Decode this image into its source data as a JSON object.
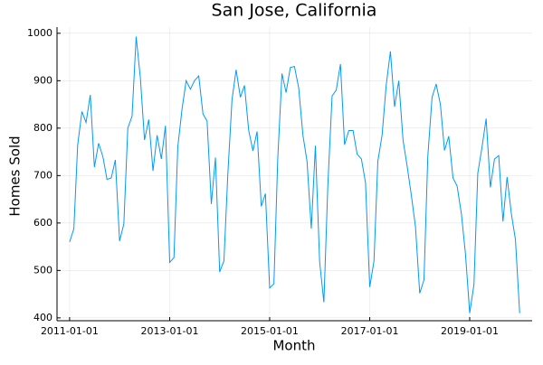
{
  "chart_data": {
    "type": "line",
    "title": "San Jose, California",
    "x_label": "Month",
    "y_label": "Homes Sold",
    "x": [
      "2011-01-01",
      "2011-02-01",
      "2011-03-01",
      "2011-04-01",
      "2011-05-01",
      "2011-06-01",
      "2011-07-01",
      "2011-08-01",
      "2011-09-01",
      "2011-10-01",
      "2011-11-01",
      "2011-12-01",
      "2012-01-01",
      "2012-02-01",
      "2012-03-01",
      "2012-04-01",
      "2012-05-01",
      "2012-06-01",
      "2012-07-01",
      "2012-08-01",
      "2012-09-01",
      "2012-10-01",
      "2012-11-01",
      "2012-12-01",
      "2013-01-01",
      "2013-02-01",
      "2013-03-01",
      "2013-04-01",
      "2013-05-01",
      "2013-06-01",
      "2013-07-01",
      "2013-08-01",
      "2013-09-01",
      "2013-10-01",
      "2013-11-01",
      "2013-12-01",
      "2014-01-01",
      "2014-02-01",
      "2014-03-01",
      "2014-04-01",
      "2014-05-01",
      "2014-06-01",
      "2014-07-01",
      "2014-08-01",
      "2014-09-01",
      "2014-10-01",
      "2014-11-01",
      "2014-12-01",
      "2015-01-01",
      "2015-02-01",
      "2015-03-01",
      "2015-04-01",
      "2015-05-01",
      "2015-06-01",
      "2015-07-01",
      "2015-08-01",
      "2015-09-01",
      "2015-10-01",
      "2015-11-01",
      "2015-12-01",
      "2016-01-01",
      "2016-02-01",
      "2016-03-01",
      "2016-04-01",
      "2016-05-01",
      "2016-06-01",
      "2016-07-01",
      "2016-08-01",
      "2016-09-01",
      "2016-10-01",
      "2016-11-01",
      "2016-12-01",
      "2017-01-01",
      "2017-02-01",
      "2017-03-01",
      "2017-04-01",
      "2017-05-01",
      "2017-06-01",
      "2017-07-01",
      "2017-08-01",
      "2017-09-01",
      "2017-10-01",
      "2017-11-01",
      "2017-12-01",
      "2018-01-01",
      "2018-02-01",
      "2018-03-01",
      "2018-04-01",
      "2018-05-01",
      "2018-06-01",
      "2018-07-01",
      "2018-08-01",
      "2018-09-01",
      "2018-10-01",
      "2018-11-01",
      "2018-12-01",
      "2019-01-01",
      "2019-02-01",
      "2019-03-01",
      "2019-04-01",
      "2019-05-01",
      "2019-06-01",
      "2019-07-01",
      "2019-08-01",
      "2019-09-01",
      "2019-10-01",
      "2019-11-01",
      "2019-12-01",
      "2020-01-01"
    ],
    "series": [
      {
        "name": "Homes Sold",
        "color": "#009af9",
        "values": [
          560,
          588,
          765,
          835,
          812,
          870,
          718,
          768,
          740,
          692,
          695,
          733,
          562,
          598,
          800,
          825,
          993,
          905,
          775,
          818,
          710,
          785,
          735,
          805,
          517,
          527,
          760,
          840,
          900,
          882,
          900,
          910,
          830,
          815,
          640,
          738,
          497,
          520,
          700,
          860,
          923,
          865,
          890,
          795,
          752,
          793,
          635,
          662,
          463,
          472,
          735,
          915,
          875,
          928,
          930,
          885,
          785,
          730,
          588,
          763,
          518,
          433,
          680,
          868,
          880,
          935,
          765,
          795,
          795,
          745,
          735,
          685,
          465,
          520,
          730,
          785,
          890,
          962,
          845,
          900,
          775,
          720,
          658,
          592,
          452,
          480,
          740,
          865,
          893,
          850,
          753,
          783,
          695,
          678,
          620,
          535,
          410,
          470,
          705,
          760,
          820,
          675,
          735,
          742,
          603,
          697,
          620,
          565,
          410
        ]
      }
    ],
    "xlim": [
      "2010-10-01",
      "2020-04-01"
    ],
    "xticks": [
      "2011-01-01",
      "2013-01-01",
      "2015-01-01",
      "2017-01-01",
      "2019-01-01"
    ],
    "ylim": [
      394,
      1013
    ],
    "yticks": [
      400,
      500,
      600,
      700,
      800,
      900,
      1000
    ],
    "grid": true
  }
}
